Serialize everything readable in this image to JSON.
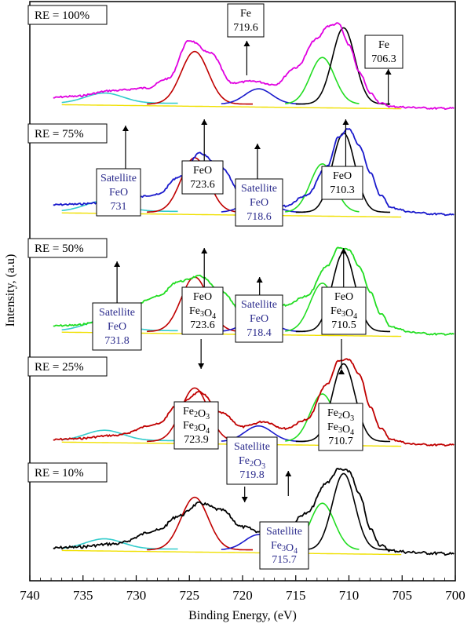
{
  "chart_data": {
    "type": "line",
    "xlabel": "Binding Energy, (eV)",
    "ylabel": "Intensity, (a.u)",
    "xlim": [
      740,
      700
    ],
    "x_reversed": true,
    "x_ticks": [
      740,
      735,
      730,
      725,
      720,
      715,
      710,
      705,
      700
    ],
    "grid": false,
    "component_colors": {
      "measured_100": "#e000e0",
      "measured_75": "#1a1acc",
      "measured_50": "#22dd22",
      "measured_25": "#c00000",
      "measured_10": "#000000",
      "background": "#f0e000",
      "satellite_feo": "#33cccc",
      "feo_2p1": "#c00000",
      "feo_2p3": "#000000",
      "fe3o4_sat": "#1a1acc",
      "fe2o3_sat": "#22dd22",
      "envelope": "#e000e0"
    },
    "panels": [
      {
        "label": "RE = 100%",
        "measured": {
          "name": "",
          "x": [
            740,
            736,
            732,
            729,
            727,
            725,
            723,
            721,
            719,
            717,
            715,
            713,
            712,
            711,
            710,
            709,
            708,
            707,
            706,
            704,
            702,
            700
          ],
          "y": [
            0.1,
            0.14,
            0.21,
            0.24,
            0.35,
            0.8,
            0.65,
            0.3,
            0.32,
            0.28,
            0.48,
            0.82,
            0.97,
            1.0,
            0.75,
            0.42,
            0.18,
            0.06,
            0.02,
            0.01,
            0.0,
            0.0
          ]
        },
        "annotations": [
          {
            "lines": [
              "Fe",
              "719.6"
            ],
            "x": 719.6
          },
          {
            "lines": [
              "Fe",
              "706.3"
            ],
            "x": 706.3
          }
        ]
      },
      {
        "label": "RE = 75%",
        "measured": {
          "name": "",
          "x": [
            740,
            736,
            732,
            728,
            726,
            724,
            722,
            720,
            718,
            716,
            714,
            712,
            711,
            710,
            709,
            708,
            707,
            706,
            704,
            702,
            700
          ],
          "y": [
            0.12,
            0.14,
            0.17,
            0.25,
            0.45,
            0.72,
            0.55,
            0.25,
            0.12,
            0.12,
            0.24,
            0.58,
            0.9,
            1.0,
            0.8,
            0.5,
            0.24,
            0.1,
            0.05,
            0.03,
            0.02
          ]
        },
        "annotations": [
          {
            "lines": [
              "Satellite",
              "FeO",
              "731"
            ],
            "x": 731
          },
          {
            "lines": [
              "FeO",
              "723.6"
            ],
            "x": 723.6
          },
          {
            "lines": [
              "Satellite",
              "FeO",
              "718.6"
            ],
            "x": 718.6
          },
          {
            "lines": [
              "FeO",
              "710.3"
            ],
            "x": 710.3
          }
        ]
      },
      {
        "label": "RE = 50%",
        "measured": {
          "name": "",
          "x": [
            740,
            736,
            732,
            728,
            726,
            724,
            722,
            720,
            718,
            716,
            714,
            712,
            711,
            710,
            709,
            708,
            707,
            706,
            704,
            702,
            700
          ],
          "y": [
            0.1,
            0.12,
            0.2,
            0.45,
            0.62,
            0.68,
            0.5,
            0.28,
            0.25,
            0.35,
            0.45,
            0.8,
            1.0,
            0.98,
            0.78,
            0.5,
            0.25,
            0.1,
            0.04,
            0.02,
            0.02
          ]
        },
        "annotations": [
          {
            "lines": [
              "Satellite",
              "FeO",
              "731.8"
            ],
            "x": 731.8
          },
          {
            "lines": [
              "FeO",
              "Fe3O4",
              "723.6"
            ],
            "x": 723.6
          },
          {
            "lines": [
              "Satellite",
              "FeO",
              "718.4"
            ],
            "x": 718.4
          },
          {
            "lines": [
              "FeO",
              "Fe3O4",
              "710.5"
            ],
            "x": 710.5
          }
        ]
      },
      {
        "label": "RE = 25%",
        "measured": {
          "name": "",
          "x": [
            740,
            736,
            732,
            728,
            726,
            724,
            722,
            720,
            718,
            716,
            714,
            712,
            711,
            710,
            709,
            708,
            707,
            706,
            704,
            702,
            700
          ],
          "y": [
            0.05,
            0.08,
            0.12,
            0.25,
            0.48,
            0.62,
            0.38,
            0.22,
            0.28,
            0.2,
            0.3,
            0.72,
            0.98,
            1.0,
            0.82,
            0.45,
            0.2,
            0.07,
            0.02,
            0.01,
            0.01
          ]
        },
        "annotations": [
          {
            "lines": [
              "Fe2O3",
              "Fe3O4",
              "723.9"
            ],
            "x": 723.9
          },
          {
            "lines": [
              "Fe2O3",
              "Fe3O4",
              "710.7"
            ],
            "x": 710.7
          }
        ]
      },
      {
        "label": "RE = 10%",
        "measured": {
          "name": "",
          "x": [
            740,
            736,
            732,
            728,
            726,
            724,
            722,
            720,
            718,
            716,
            714,
            712,
            711,
            710,
            709,
            708,
            707,
            706,
            704,
            702,
            700
          ],
          "y": [
            0.05,
            0.08,
            0.12,
            0.28,
            0.45,
            0.6,
            0.52,
            0.32,
            0.25,
            0.3,
            0.48,
            0.85,
            1.0,
            0.98,
            0.7,
            0.3,
            0.1,
            0.04,
            0.02,
            0.01,
            0.0
          ]
        },
        "annotations": [
          {
            "lines": [
              "Satellite",
              "Fe2O3",
              "719.8"
            ],
            "x": 719.8
          },
          {
            "lines": [
              "Satellite",
              "Fe3O4",
              "715.7"
            ],
            "x": 715.7
          }
        ]
      }
    ]
  }
}
